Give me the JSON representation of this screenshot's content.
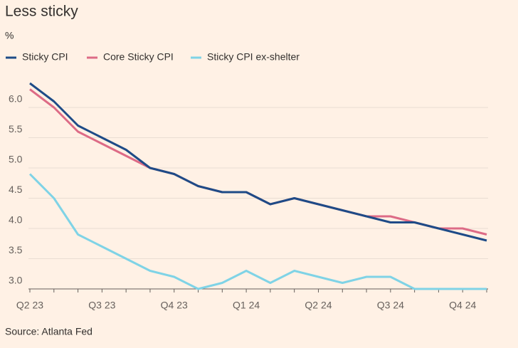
{
  "chart_data": {
    "type": "line",
    "title": "Less sticky",
    "y_label": "%",
    "source": "Source: Atlanta Fed",
    "categories": [
      "Q2 23",
      null,
      null,
      "Q3 23",
      null,
      null,
      "Q4 23",
      null,
      null,
      "Q1 24",
      null,
      null,
      "Q2 24",
      null,
      null,
      "Q3 24",
      null,
      null,
      "Q4 24",
      null
    ],
    "series": [
      {
        "name": "Sticky CPI",
        "color": "#1e4b87",
        "values": [
          6.4,
          6.1,
          5.7,
          5.5,
          5.3,
          5.0,
          4.9,
          4.7,
          4.6,
          4.6,
          4.4,
          4.5,
          4.4,
          4.3,
          4.2,
          4.1,
          4.1,
          4.0,
          3.9,
          3.8
        ]
      },
      {
        "name": "Core Sticky CPI",
        "color": "#dd6b86",
        "values": [
          6.3,
          6.0,
          5.6,
          5.4,
          5.2,
          5.0,
          4.9,
          4.7,
          4.6,
          4.6,
          4.4,
          4.5,
          4.4,
          4.3,
          4.2,
          4.2,
          4.1,
          4.0,
          4.0,
          3.9
        ]
      },
      {
        "name": "Sticky CPI ex-shelter",
        "color": "#7fd3e6",
        "values": [
          4.9,
          4.5,
          3.9,
          3.7,
          3.5,
          3.3,
          3.2,
          3.0,
          3.1,
          3.3,
          3.1,
          3.3,
          3.2,
          3.1,
          3.2,
          3.2,
          3.0,
          3.0,
          3.0,
          3.0
        ]
      }
    ],
    "ylim": [
      3.0,
      6.5
    ],
    "yticks": [
      {
        "value": 3.0,
        "label": "3.0"
      },
      3.5,
      {
        "value": 4.0,
        "label": "4.0"
      },
      4.5,
      {
        "value": 5.0,
        "label": "5.0"
      },
      5.5,
      {
        "value": 6.0,
        "label": "6.0"
      }
    ],
    "grid": true
  }
}
